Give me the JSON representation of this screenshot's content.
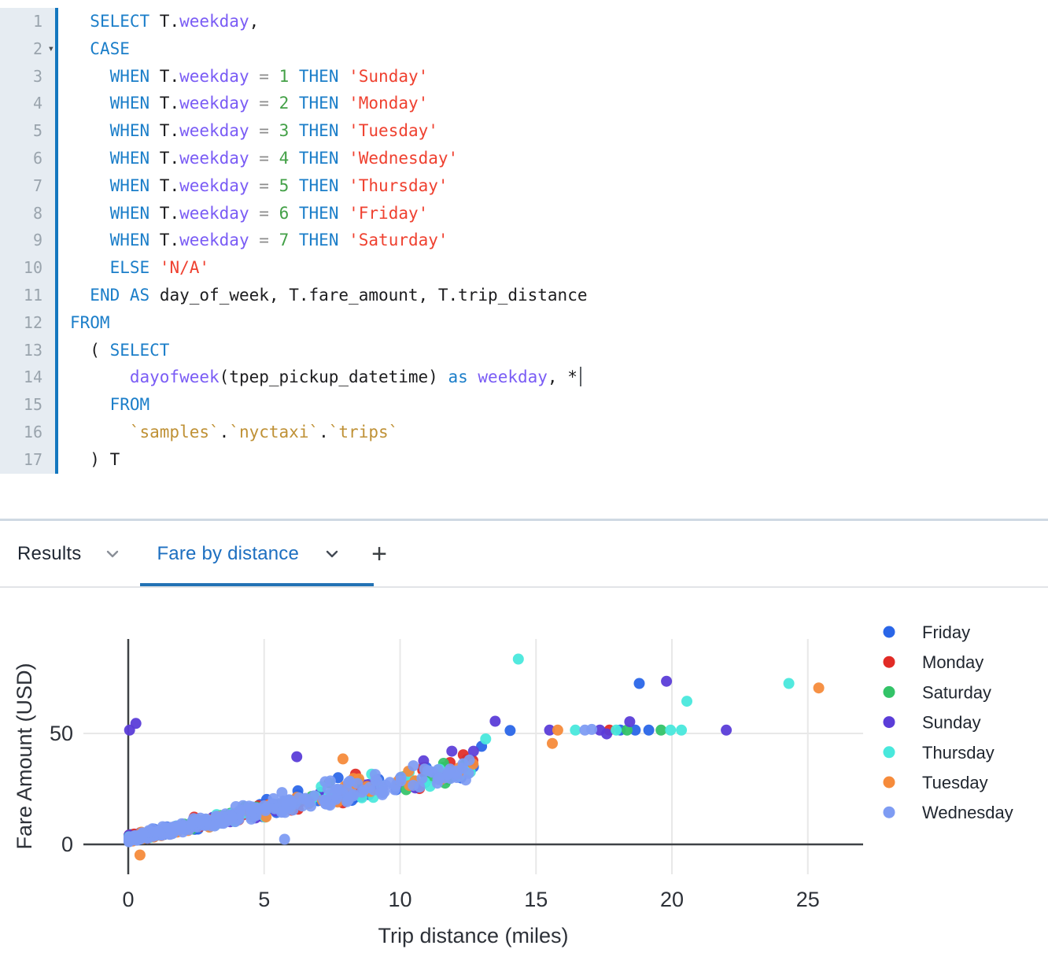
{
  "editor": {
    "lines": [
      {
        "num": "1",
        "segs": [
          [
            "pl",
            "  "
          ],
          [
            "k",
            "SELECT"
          ],
          [
            "pl",
            " T."
          ],
          [
            "v",
            "weekday"
          ],
          [
            "pl",
            ","
          ]
        ]
      },
      {
        "num": "2",
        "fold": true,
        "segs": [
          [
            "pl",
            "  "
          ],
          [
            "k",
            "CASE"
          ]
        ]
      },
      {
        "num": "3",
        "segs": [
          [
            "pl",
            "    "
          ],
          [
            "k",
            "WHEN"
          ],
          [
            "pl",
            " T."
          ],
          [
            "v",
            "weekday"
          ],
          [
            "pl",
            " "
          ],
          [
            "o",
            "="
          ],
          [
            "pl",
            " "
          ],
          [
            "n",
            "1"
          ],
          [
            "pl",
            " "
          ],
          [
            "k",
            "THEN"
          ],
          [
            "pl",
            " "
          ],
          [
            "s",
            "'Sunday'"
          ]
        ]
      },
      {
        "num": "4",
        "segs": [
          [
            "pl",
            "    "
          ],
          [
            "k",
            "WHEN"
          ],
          [
            "pl",
            " T."
          ],
          [
            "v",
            "weekday"
          ],
          [
            "pl",
            " "
          ],
          [
            "o",
            "="
          ],
          [
            "pl",
            " "
          ],
          [
            "n",
            "2"
          ],
          [
            "pl",
            " "
          ],
          [
            "k",
            "THEN"
          ],
          [
            "pl",
            " "
          ],
          [
            "s",
            "'Monday'"
          ]
        ]
      },
      {
        "num": "5",
        "segs": [
          [
            "pl",
            "    "
          ],
          [
            "k",
            "WHEN"
          ],
          [
            "pl",
            " T."
          ],
          [
            "v",
            "weekday"
          ],
          [
            "pl",
            " "
          ],
          [
            "o",
            "="
          ],
          [
            "pl",
            " "
          ],
          [
            "n",
            "3"
          ],
          [
            "pl",
            " "
          ],
          [
            "k",
            "THEN"
          ],
          [
            "pl",
            " "
          ],
          [
            "s",
            "'Tuesday'"
          ]
        ]
      },
      {
        "num": "6",
        "segs": [
          [
            "pl",
            "    "
          ],
          [
            "k",
            "WHEN"
          ],
          [
            "pl",
            " T."
          ],
          [
            "v",
            "weekday"
          ],
          [
            "pl",
            " "
          ],
          [
            "o",
            "="
          ],
          [
            "pl",
            " "
          ],
          [
            "n",
            "4"
          ],
          [
            "pl",
            " "
          ],
          [
            "k",
            "THEN"
          ],
          [
            "pl",
            " "
          ],
          [
            "s",
            "'Wednesday'"
          ]
        ]
      },
      {
        "num": "7",
        "segs": [
          [
            "pl",
            "    "
          ],
          [
            "k",
            "WHEN"
          ],
          [
            "pl",
            " T."
          ],
          [
            "v",
            "weekday"
          ],
          [
            "pl",
            " "
          ],
          [
            "o",
            "="
          ],
          [
            "pl",
            " "
          ],
          [
            "n",
            "5"
          ],
          [
            "pl",
            " "
          ],
          [
            "k",
            "THEN"
          ],
          [
            "pl",
            " "
          ],
          [
            "s",
            "'Thursday'"
          ]
        ]
      },
      {
        "num": "8",
        "segs": [
          [
            "pl",
            "    "
          ],
          [
            "k",
            "WHEN"
          ],
          [
            "pl",
            " T."
          ],
          [
            "v",
            "weekday"
          ],
          [
            "pl",
            " "
          ],
          [
            "o",
            "="
          ],
          [
            "pl",
            " "
          ],
          [
            "n",
            "6"
          ],
          [
            "pl",
            " "
          ],
          [
            "k",
            "THEN"
          ],
          [
            "pl",
            " "
          ],
          [
            "s",
            "'Friday'"
          ]
        ]
      },
      {
        "num": "9",
        "segs": [
          [
            "pl",
            "    "
          ],
          [
            "k",
            "WHEN"
          ],
          [
            "pl",
            " T."
          ],
          [
            "v",
            "weekday"
          ],
          [
            "pl",
            " "
          ],
          [
            "o",
            "="
          ],
          [
            "pl",
            " "
          ],
          [
            "n",
            "7"
          ],
          [
            "pl",
            " "
          ],
          [
            "k",
            "THEN"
          ],
          [
            "pl",
            " "
          ],
          [
            "s",
            "'Saturday'"
          ]
        ]
      },
      {
        "num": "10",
        "segs": [
          [
            "pl",
            "    "
          ],
          [
            "k",
            "ELSE"
          ],
          [
            "pl",
            " "
          ],
          [
            "s",
            "'N/A'"
          ]
        ]
      },
      {
        "num": "11",
        "segs": [
          [
            "pl",
            "  "
          ],
          [
            "k",
            "END"
          ],
          [
            "pl",
            " "
          ],
          [
            "k",
            "AS"
          ],
          [
            "pl",
            " day_of_week, T.fare_amount, T.trip_distance"
          ]
        ]
      },
      {
        "num": "12",
        "segs": [
          [
            "k",
            "FROM"
          ]
        ]
      },
      {
        "num": "13",
        "segs": [
          [
            "pl",
            "  ( "
          ],
          [
            "k",
            "SELECT"
          ]
        ]
      },
      {
        "num": "14",
        "caret": true,
        "segs": [
          [
            "pl",
            "      "
          ],
          [
            "v",
            "dayofweek"
          ],
          [
            "pl",
            "(tpep_pickup_datetime) "
          ],
          [
            "k",
            "as"
          ],
          [
            "pl",
            " "
          ],
          [
            "v",
            "weekday"
          ],
          [
            "pl",
            ", *"
          ]
        ]
      },
      {
        "num": "15",
        "segs": [
          [
            "pl",
            "    "
          ],
          [
            "k",
            "FROM"
          ]
        ]
      },
      {
        "num": "16",
        "segs": [
          [
            "pl",
            "      "
          ],
          [
            "b",
            "`samples`"
          ],
          [
            "pl",
            "."
          ],
          [
            "b",
            "`nyctaxi`"
          ],
          [
            "pl",
            "."
          ],
          [
            "b",
            "`trips`"
          ]
        ]
      },
      {
        "num": "17",
        "segs": [
          [
            "pl",
            "  ) T"
          ]
        ]
      }
    ]
  },
  "tabs": {
    "results_label": "Results",
    "chart_tab_label": "Fare by distance",
    "add_tab_label": "+",
    "active_color": "#2272b4"
  },
  "chart_data": {
    "type": "scatter",
    "xlabel": "Trip distance (miles)",
    "ylabel": "Fare Amount (USD)",
    "x_ticks": [
      0,
      5,
      10,
      15,
      20,
      25
    ],
    "y_ticks": [
      0,
      50
    ],
    "xlim": [
      -1.7,
      27.1
    ],
    "ylim": [
      -13.5,
      92.5
    ],
    "grid": true,
    "legend_position": "right",
    "series": [
      {
        "name": "Friday",
        "color": "#2a66e8",
        "points": [
          [
            13.0,
            44.2
          ],
          [
            14.05,
            51.3
          ],
          [
            18.1,
            51.5
          ],
          [
            18.65,
            51.5
          ],
          [
            19.15,
            51.5
          ],
          [
            18.8,
            72.5
          ]
        ]
      },
      {
        "name": "Monday",
        "color": "#e12b26",
        "points": [
          [
            17.7,
            51.5
          ]
        ]
      },
      {
        "name": "Saturday",
        "color": "#33c368",
        "points": [
          [
            18.35,
            51.5
          ],
          [
            19.6,
            51.5
          ]
        ]
      },
      {
        "name": "Sunday",
        "color": "#5b3dd8",
        "points": [
          [
            0.05,
            51.5
          ],
          [
            0.28,
            54.5
          ],
          [
            6.2,
            39.5
          ],
          [
            13.5,
            55.5
          ],
          [
            15.5,
            51.5
          ],
          [
            17.35,
            51.5
          ],
          [
            17.6,
            49.8
          ],
          [
            18.45,
            55.3
          ],
          [
            19.8,
            73.5
          ],
          [
            22.0,
            51.5
          ]
        ]
      },
      {
        "name": "Thursday",
        "color": "#49e8dc",
        "points": [
          [
            13.15,
            47.5
          ],
          [
            14.35,
            83.5
          ],
          [
            16.45,
            51.5
          ],
          [
            17.95,
            51.5
          ],
          [
            19.95,
            51.5
          ],
          [
            20.35,
            51.5
          ],
          [
            20.55,
            64.5
          ],
          [
            24.3,
            72.5
          ]
        ]
      },
      {
        "name": "Tuesday",
        "color": "#f68b3b",
        "points": [
          [
            0.43,
            -4.8
          ],
          [
            7.9,
            38.5
          ],
          [
            15.6,
            45.5
          ],
          [
            15.8,
            51.5
          ],
          [
            25.4,
            70.5
          ]
        ]
      },
      {
        "name": "Wednesday",
        "color": "#7e9cf3",
        "points": [
          [
            5.75,
            2.3
          ],
          [
            16.8,
            51.5
          ],
          [
            17.05,
            51.8
          ]
        ]
      }
    ],
    "cluster": {
      "description": "dense linear band of trips, fare ~ 2.2 + 2.55 * miles, 0-12.8 miles",
      "x_max": 12.8,
      "x_pow": 1.9,
      "base_fare": 2.2,
      "slope_per_mile": 2.55,
      "spread_base": 1.1,
      "spread_per_mile": 0.33,
      "counts": {
        "Friday": 85,
        "Monday": 58,
        "Saturday": 52,
        "Sunday": 55,
        "Thursday": 68,
        "Tuesday": 72,
        "Wednesday": 275
      }
    }
  }
}
